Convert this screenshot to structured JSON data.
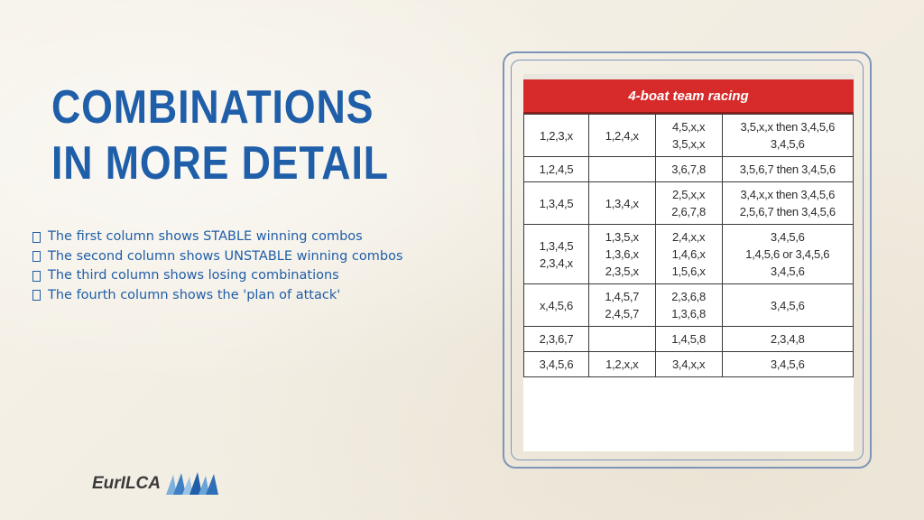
{
  "title": {
    "line1": "COMBINATIONS",
    "line2": "IN MORE DETAIL"
  },
  "bullets": [
    "The first column shows STABLE winning combos",
    "The second column shows UNSTABLE winning combos",
    "The third column shows losing combinations",
    "The fourth column shows the 'plan of attack'"
  ],
  "table": {
    "header": "4-boat team racing",
    "rows": [
      {
        "c1": [
          "1,2,3,x"
        ],
        "c2": [
          "1,2,4,x"
        ],
        "c3": [
          "4,5,x,x",
          "3,5,x,x"
        ],
        "c4": [
          "3,5,x,x then 3,4,5,6",
          "3,4,5,6"
        ]
      },
      {
        "c1": [
          "1,2,4,5"
        ],
        "c2": [],
        "c3": [
          "3,6,7,8"
        ],
        "c4": [
          "3,5,6,7 then 3,4,5,6"
        ]
      },
      {
        "c1": [
          "1,3,4,5"
        ],
        "c2": [
          "1,3,4,x"
        ],
        "c3": [
          "2,5,x,x",
          "2,6,7,8"
        ],
        "c4": [
          "3,4,x,x then 3,4,5,6",
          "2,5,6,7 then 3,4,5,6"
        ]
      },
      {
        "c1": [
          "1,3,4,5",
          "2,3,4,x"
        ],
        "c2": [
          "1,3,5,x",
          "1,3,6,x",
          "2,3,5,x"
        ],
        "c3": [
          "2,4,x,x",
          "1,4,6,x",
          "1,5,6,x"
        ],
        "c4": [
          "3,4,5,6",
          "1,4,5,6 or 3,4,5,6",
          "3,4,5,6"
        ]
      },
      {
        "c1": [
          "x,4,5,6"
        ],
        "c2": [
          "1,4,5,7",
          "2,4,5,7"
        ],
        "c3": [
          "2,3,6,8",
          "1,3,6,8"
        ],
        "c4": [
          "3,4,5,6"
        ]
      },
      {
        "c1": [
          "2,3,6,7"
        ],
        "c2": [],
        "c3": [
          "1,4,5,8"
        ],
        "c4": [
          "2,3,4,8"
        ]
      },
      {
        "c1": [
          "3,4,5,6"
        ],
        "c2": [
          "1,2,x,x"
        ],
        "c3": [
          "3,4,x,x"
        ],
        "c4": [
          "3,4,5,6"
        ]
      }
    ]
  },
  "logo": {
    "text": "EurILCA",
    "icon": "sail-icon"
  },
  "colors": {
    "title": "#1f5ea8",
    "table_header": "#d72b2b",
    "frame": "#7d95b8",
    "background": "#f4f0e6"
  }
}
